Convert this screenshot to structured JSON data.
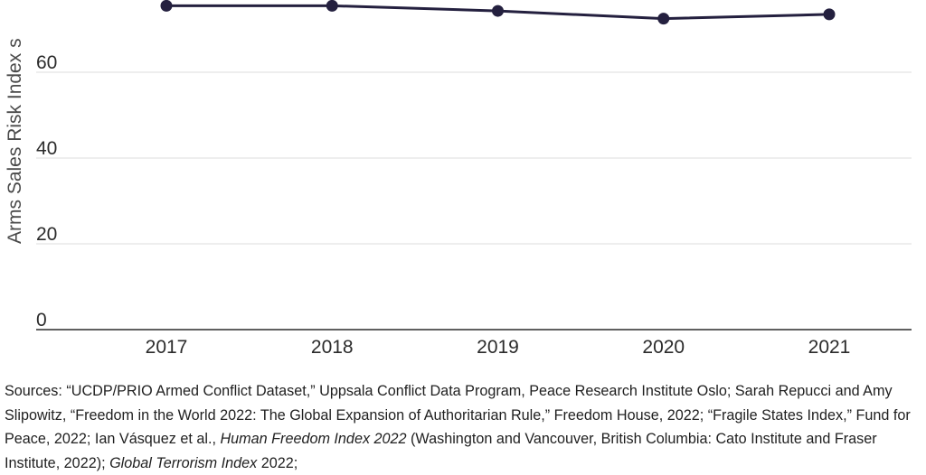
{
  "chart_data": {
    "type": "line",
    "title": "",
    "xlabel": "",
    "ylabel": "Arms Sales Risk Index s",
    "categories": [
      "2017",
      "2018",
      "2019",
      "2020",
      "2021"
    ],
    "series": [
      {
        "values": [
          75.5,
          75.5,
          74.3,
          72.5,
          73.5
        ]
      }
    ],
    "yticks": [
      "0",
      "20",
      "40",
      "60"
    ],
    "ylim": [
      0,
      80
    ],
    "grid": true,
    "legend": "none",
    "colors": {
      "line": "#24203f",
      "grid": "#dcdcdc",
      "axis": "#2b2b2b",
      "tick_label": "#2b2b2b",
      "ylabel": "#4a4a4a"
    }
  },
  "sources": {
    "line1": "Sources: “UCDP/PRIO Armed Conflict Dataset,” Uppsala Conflict Data Program, Peace Research Institute Oslo; Sarah",
    "line2": "Repucci and Amy Slipowitz, “Freedom in the World 2022: The Global Expansion of Authoritarian Rule,” Freedom",
    "line3_plain": "House, 2022; “Fragile States Index,” Fund for Peace, 2022; Ian Vásquez et al., ",
    "line3_italic": "Human Freedom Index 2022",
    "line4_plain": "(Washington and Vancouver, British Columbia: Cato Institute and Fraser Institute, 2022); ",
    "line4_italic": "Global Terrorism Index",
    "line4_end": " 2022;"
  }
}
